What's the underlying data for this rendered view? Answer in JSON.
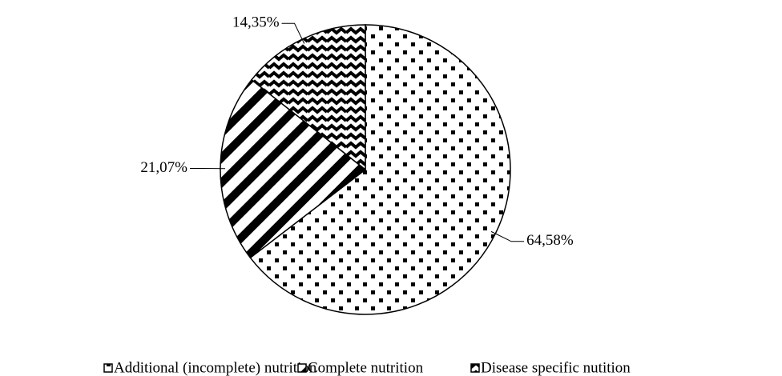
{
  "chart_data": {
    "type": "pie",
    "categories": [
      "Additional (incomplete) nutrition",
      "Complete nutrition",
      "Disease specific nutition"
    ],
    "values": [
      64.58,
      21.07,
      14.35
    ],
    "value_labels": [
      "64,58%",
      "21,07%",
      "14,35%"
    ]
  }
}
